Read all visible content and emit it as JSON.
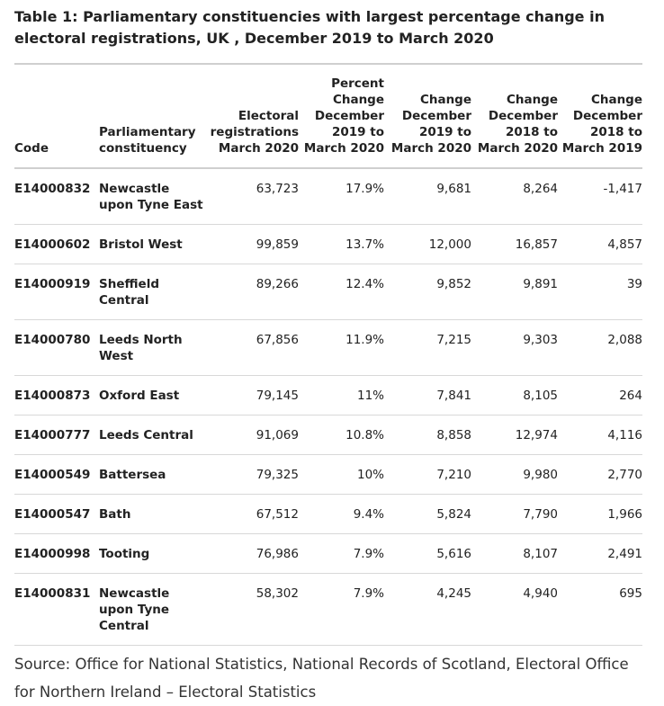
{
  "title": "Table 1: Parliamentary constituencies with largest percentage change in electoral registrations, UK , December 2019 to March 2020",
  "headers": {
    "code": "Code",
    "constituency": "Parliamentary constituency",
    "registrations": "Electoral registrations March 2020",
    "pct_change": "Percent Change December 2019 to March 2020",
    "change_dec2019": "Change December 2019 to March 2020",
    "change_dec2018_mar2020": "Change December 2018 to March 2020",
    "change_dec2018_mar2019": "Change December 2018 to March 2019"
  },
  "rows": [
    {
      "code": "E14000832",
      "name": "Newcastle upon Tyne East",
      "reg": "63,723",
      "pct": "17.9%",
      "c1": "9,681",
      "c2": "8,264",
      "c3": "-1,417"
    },
    {
      "code": "E14000602",
      "name": "Bristol West",
      "reg": "99,859",
      "pct": "13.7%",
      "c1": "12,000",
      "c2": "16,857",
      "c3": "4,857"
    },
    {
      "code": "E14000919",
      "name": "Sheffield Central",
      "reg": "89,266",
      "pct": "12.4%",
      "c1": "9,852",
      "c2": "9,891",
      "c3": "39"
    },
    {
      "code": "E14000780",
      "name": "Leeds North West",
      "reg": "67,856",
      "pct": "11.9%",
      "c1": "7,215",
      "c2": "9,303",
      "c3": "2,088"
    },
    {
      "code": "E14000873",
      "name": "Oxford East",
      "reg": "79,145",
      "pct": "11%",
      "c1": "7,841",
      "c2": "8,105",
      "c3": "264"
    },
    {
      "code": "E14000777",
      "name": "Leeds Central",
      "reg": "91,069",
      "pct": "10.8%",
      "c1": "8,858",
      "c2": "12,974",
      "c3": "4,116"
    },
    {
      "code": "E14000549",
      "name": "Battersea",
      "reg": "79,325",
      "pct": "10%",
      "c1": "7,210",
      "c2": "9,980",
      "c3": "2,770"
    },
    {
      "code": "E14000547",
      "name": "Bath",
      "reg": "67,512",
      "pct": "9.4%",
      "c1": "5,824",
      "c2": "7,790",
      "c3": "1,966"
    },
    {
      "code": "E14000998",
      "name": "Tooting",
      "reg": "76,986",
      "pct": "7.9%",
      "c1": "5,616",
      "c2": "8,107",
      "c3": "2,491"
    },
    {
      "code": "E14000831",
      "name": "Newcastle upon Tyne Central",
      "reg": "58,302",
      "pct": "7.9%",
      "c1": "4,245",
      "c2": "4,940",
      "c3": "695"
    }
  ],
  "source": "Source: Office for National Statistics, National Records of Scotland, Electoral Office for Northern Ireland – Electoral Statistics"
}
